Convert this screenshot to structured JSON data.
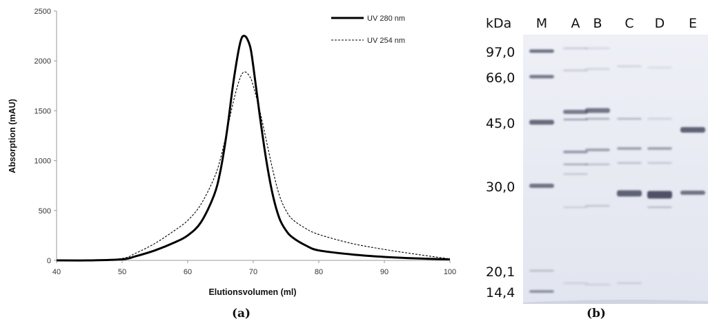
{
  "chart_data": {
    "type": "line",
    "title": "",
    "xlabel": "Elutionsvolumen (ml)",
    "ylabel": "Absorption (mAU)",
    "xlim": [
      40,
      100
    ],
    "ylim": [
      0,
      2500
    ],
    "xticks": [
      "40",
      "50",
      "60",
      "70",
      "80",
      "90",
      "100"
    ],
    "yticks": [
      "0",
      "500",
      "1000",
      "1500",
      "2000",
      "2500"
    ],
    "grid": false,
    "legend_position": "top-right",
    "series": [
      {
        "name": "UV 280 nm",
        "style": "solid",
        "x": [
          40,
          45,
          50,
          52,
          55,
          58,
          60,
          62,
          64,
          65,
          66,
          67,
          68,
          68.7,
          69.5,
          70,
          71,
          72,
          73,
          74,
          75,
          76,
          78,
          80,
          85,
          90,
          95,
          100
        ],
        "y": [
          0,
          0,
          10,
          40,
          100,
          180,
          250,
          380,
          650,
          900,
          1300,
          1800,
          2180,
          2250,
          2150,
          1950,
          1450,
          1000,
          650,
          420,
          300,
          230,
          150,
          100,
          60,
          35,
          20,
          10
        ]
      },
      {
        "name": "UV 254 nm",
        "style": "dashed",
        "x": [
          40,
          45,
          50,
          52,
          55,
          58,
          60,
          62,
          64,
          65,
          66,
          67,
          68,
          68.7,
          69.5,
          70,
          71,
          72,
          73,
          74,
          75,
          76,
          78,
          80,
          85,
          90,
          95,
          100
        ],
        "y": [
          0,
          0,
          20,
          70,
          170,
          300,
          400,
          560,
          820,
          1020,
          1300,
          1600,
          1830,
          1890,
          1840,
          1750,
          1500,
          1200,
          900,
          650,
          500,
          410,
          320,
          260,
          170,
          110,
          60,
          15
        ]
      }
    ]
  },
  "figure_a": {
    "caption": "(a)"
  },
  "gel": {
    "caption": "(b)",
    "unit_label": "kDa",
    "lanes": [
      "M",
      "A",
      "B",
      "C",
      "D",
      "E"
    ],
    "markers": [
      "97,0",
      "66,0",
      "45,0",
      "30,0",
      "20,1",
      "14,4"
    ],
    "marker_values": [
      97.0,
      66.0,
      45.0,
      30.0,
      20.1,
      14.4
    ]
  }
}
